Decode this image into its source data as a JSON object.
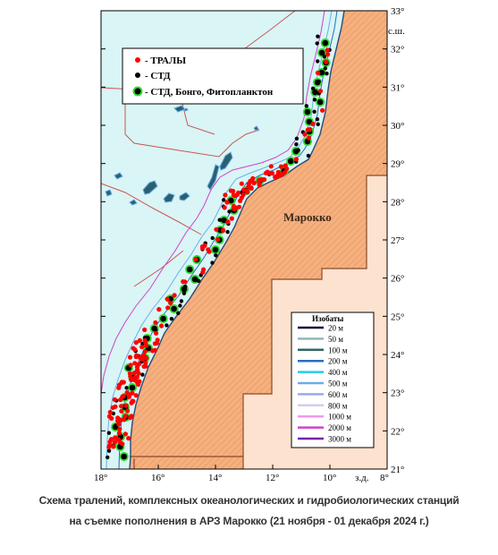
{
  "map": {
    "country_label": "Марокко",
    "lat_unit": "с.ш.",
    "lon_unit": "з.д.",
    "lat_labels": [
      "21°",
      "22°",
      "23°",
      "24°",
      "25°",
      "26°",
      "27°",
      "28°",
      "29°",
      "30°",
      "31°",
      "32°",
      "33°"
    ],
    "lon_labels": [
      "18°",
      "16°",
      "14°",
      "12°",
      "10°",
      "8°"
    ],
    "colors": {
      "sea": "#d9f5f5",
      "land": "#f5b07f",
      "land_hatch": "#e9955f",
      "land_light": "#fde3cf",
      "border": "#8a4a2a",
      "eez": "#cc5555",
      "trawl": "#ff0000",
      "ctd": "#000000",
      "ring": "#33dd33"
    }
  },
  "legend": {
    "items": [
      {
        "symbol": "red-dot",
        "label": "- ТРАЛЫ"
      },
      {
        "symbol": "black-dot",
        "label": "- СТД"
      },
      {
        "symbol": "ringed-dot",
        "label": "- СТД, Бонго, Фитопланктон"
      }
    ]
  },
  "isobaths": {
    "title": "Изобаты",
    "items": [
      {
        "label": "20 м",
        "color": "#111133"
      },
      {
        "label": "50 м",
        "color": "#8fb8b8"
      },
      {
        "label": "100 м",
        "color": "#336666"
      },
      {
        "label": "200 м",
        "color": "#2a6fbf"
      },
      {
        "label": "400 м",
        "color": "#22ccee"
      },
      {
        "label": "500 м",
        "color": "#6aaee8"
      },
      {
        "label": "600 м",
        "color": "#9aa8ee"
      },
      {
        "label": "800 м",
        "color": "#ccd0ee"
      },
      {
        "label": "1000 м",
        "color": "#ee99ee"
      },
      {
        "label": "2000 м",
        "color": "#cc44cc"
      },
      {
        "label": "3000 м",
        "color": "#7722aa"
      }
    ]
  },
  "caption": {
    "line1": "Схема тралений, комплексных океанологических и гидробиологических станций",
    "line2": "на съемке пополнения в АРЗ Марокко (21 ноября - 01 декабря 2024 г.)"
  }
}
